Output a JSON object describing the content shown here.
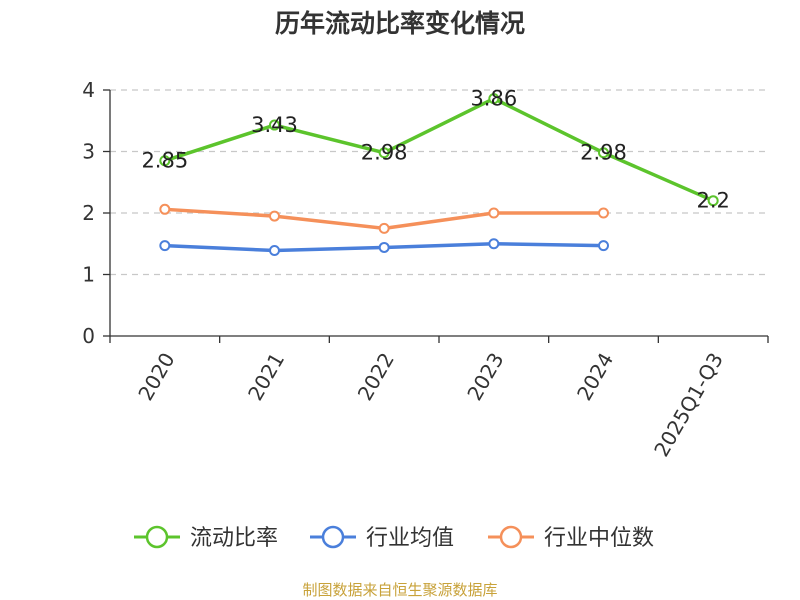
{
  "chart_data": {
    "type": "line",
    "title": "历年流动比率变化情况",
    "categories": [
      "2020",
      "2021",
      "2022",
      "2023",
      "2024",
      "2025Q1-Q3"
    ],
    "ylim": [
      0,
      4
    ],
    "yticks": [
      0,
      1,
      2,
      3,
      4
    ],
    "grid": true,
    "legend_position": "bottom",
    "series": [
      {
        "name": "流动比率",
        "color": "#5cc42c",
        "values": [
          2.85,
          3.43,
          2.98,
          3.86,
          2.98,
          2.2
        ],
        "labels": [
          "2.85",
          "3.43",
          "2.98",
          "3.86",
          "2.98",
          "2.2"
        ]
      },
      {
        "name": "行业均值",
        "color": "#4a7fdb",
        "values": [
          1.47,
          1.39,
          1.44,
          1.5,
          1.47,
          null
        ]
      },
      {
        "name": "行业中位数",
        "color": "#f5905a",
        "values": [
          2.06,
          1.95,
          1.75,
          2.0,
          2.0,
          null
        ]
      }
    ]
  },
  "source": "制图数据来自恒生聚源数据库"
}
